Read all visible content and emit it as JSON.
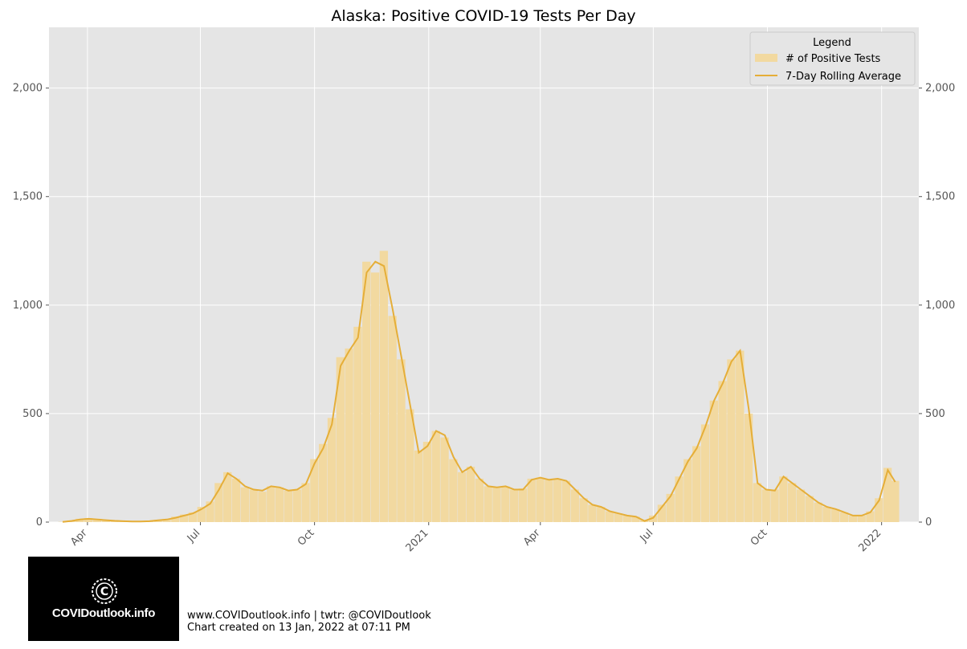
{
  "chart_data": {
    "type": "bar",
    "title": "Alaska: Positive COVID-19 Tests Per Day",
    "xlabel": "",
    "ylabel": "",
    "x_range": [
      "2020-03-01",
      "2022-01-31"
    ],
    "ylim": [
      0,
      2280
    ],
    "y_ticks": [
      0,
      500,
      1000,
      1500,
      2000
    ],
    "y_tick_labels": [
      "0",
      "500",
      "1,000",
      "1,500",
      "2,000"
    ],
    "x_ticks": [
      {
        "date": "2020-04-01",
        "label": "Apr"
      },
      {
        "date": "2020-07-01",
        "label": "Jul"
      },
      {
        "date": "2020-10-01",
        "label": "Oct"
      },
      {
        "date": "2021-01-01",
        "label": "2021"
      },
      {
        "date": "2021-04-01",
        "label": "Apr"
      },
      {
        "date": "2021-07-01",
        "label": "Jul"
      },
      {
        "date": "2021-10-01",
        "label": "Oct"
      },
      {
        "date": "2022-01-01",
        "label": "2022"
      }
    ],
    "grid": true,
    "legend": {
      "title": "Legend",
      "position": "top-right",
      "entries": [
        {
          "label": "# of Positive Tests",
          "kind": "bar"
        },
        {
          "label": "7-Day Rolling Average",
          "kind": "line"
        }
      ]
    },
    "series": [
      {
        "name": "# of Positive Tests",
        "kind": "bar",
        "color": "#f2d9a0",
        "points": [
          [
            "2020-03-12",
            1
          ],
          [
            "2020-03-19",
            8
          ],
          [
            "2020-03-26",
            15
          ],
          [
            "2020-04-02",
            18
          ],
          [
            "2020-04-09",
            15
          ],
          [
            "2020-04-16",
            10
          ],
          [
            "2020-04-23",
            6
          ],
          [
            "2020-04-30",
            4
          ],
          [
            "2020-05-07",
            4
          ],
          [
            "2020-05-14",
            3
          ],
          [
            "2020-05-21",
            5
          ],
          [
            "2020-05-28",
            10
          ],
          [
            "2020-06-04",
            15
          ],
          [
            "2020-06-11",
            25
          ],
          [
            "2020-06-18",
            35
          ],
          [
            "2020-06-25",
            45
          ],
          [
            "2020-07-02",
            70
          ],
          [
            "2020-07-09",
            95
          ],
          [
            "2020-07-16",
            180
          ],
          [
            "2020-07-23",
            230
          ],
          [
            "2020-07-30",
            200
          ],
          [
            "2020-08-06",
            160
          ],
          [
            "2020-08-13",
            150
          ],
          [
            "2020-08-20",
            140
          ],
          [
            "2020-08-27",
            165
          ],
          [
            "2020-09-03",
            160
          ],
          [
            "2020-09-10",
            145
          ],
          [
            "2020-09-17",
            150
          ],
          [
            "2020-09-24",
            180
          ],
          [
            "2020-10-01",
            290
          ],
          [
            "2020-10-08",
            360
          ],
          [
            "2020-10-15",
            480
          ],
          [
            "2020-10-22",
            760
          ],
          [
            "2020-10-29",
            800
          ],
          [
            "2020-11-05",
            900
          ],
          [
            "2020-11-12",
            1200
          ],
          [
            "2020-11-19",
            1150
          ],
          [
            "2020-11-26",
            1250
          ],
          [
            "2020-12-03",
            950
          ],
          [
            "2020-12-10",
            750
          ],
          [
            "2020-12-17",
            520
          ],
          [
            "2020-12-24",
            330
          ],
          [
            "2020-12-31",
            370
          ],
          [
            "2021-01-07",
            420
          ],
          [
            "2021-01-14",
            390
          ],
          [
            "2021-01-21",
            290
          ],
          [
            "2021-01-28",
            230
          ],
          [
            "2021-02-04",
            255
          ],
          [
            "2021-02-11",
            200
          ],
          [
            "2021-02-18",
            165
          ],
          [
            "2021-02-25",
            160
          ],
          [
            "2021-03-04",
            165
          ],
          [
            "2021-03-11",
            150
          ],
          [
            "2021-03-18",
            155
          ],
          [
            "2021-03-25",
            200
          ],
          [
            "2021-04-01",
            205
          ],
          [
            "2021-04-08",
            195
          ],
          [
            "2021-04-15",
            200
          ],
          [
            "2021-04-22",
            190
          ],
          [
            "2021-04-29",
            150
          ],
          [
            "2021-05-06",
            110
          ],
          [
            "2021-05-13",
            80
          ],
          [
            "2021-05-20",
            70
          ],
          [
            "2021-05-27",
            50
          ],
          [
            "2021-06-03",
            40
          ],
          [
            "2021-06-10",
            30
          ],
          [
            "2021-06-17",
            25
          ],
          [
            "2021-06-24",
            10
          ],
          [
            "2021-07-01",
            30
          ],
          [
            "2021-07-08",
            80
          ],
          [
            "2021-07-15",
            130
          ],
          [
            "2021-07-22",
            210
          ],
          [
            "2021-07-29",
            290
          ],
          [
            "2021-08-05",
            350
          ],
          [
            "2021-08-12",
            450
          ],
          [
            "2021-08-19",
            560
          ],
          [
            "2021-08-26",
            650
          ],
          [
            "2021-09-02",
            750
          ],
          [
            "2021-09-09",
            790
          ],
          [
            "2021-09-16",
            500
          ],
          [
            "2021-09-23",
            180
          ],
          [
            "2021-09-30",
            150
          ],
          [
            "2021-10-07",
            150
          ],
          [
            "2021-10-14",
            210
          ],
          [
            "2021-10-21",
            180
          ],
          [
            "2021-10-28",
            150
          ],
          [
            "2021-11-04",
            120
          ],
          [
            "2021-11-11",
            90
          ],
          [
            "2021-11-18",
            70
          ],
          [
            "2021-11-25",
            60
          ],
          [
            "2021-12-02",
            45
          ],
          [
            "2021-12-09",
            30
          ],
          [
            "2021-12-16",
            30
          ],
          [
            "2021-12-23",
            50
          ],
          [
            "2021-12-30",
            110
          ],
          [
            "2022-01-06",
            250
          ],
          [
            "2022-01-12",
            190
          ]
        ]
      },
      {
        "name": "7-Day Rolling Average",
        "kind": "line",
        "color": "#e5ae38",
        "points": [
          [
            "2020-03-12",
            1
          ],
          [
            "2020-03-19",
            5
          ],
          [
            "2020-03-26",
            12
          ],
          [
            "2020-04-02",
            15
          ],
          [
            "2020-04-09",
            12
          ],
          [
            "2020-04-16",
            9
          ],
          [
            "2020-04-23",
            6
          ],
          [
            "2020-04-30",
            4
          ],
          [
            "2020-05-07",
            3
          ],
          [
            "2020-05-14",
            3
          ],
          [
            "2020-05-21",
            4
          ],
          [
            "2020-05-28",
            8
          ],
          [
            "2020-06-04",
            12
          ],
          [
            "2020-06-11",
            20
          ],
          [
            "2020-06-18",
            30
          ],
          [
            "2020-06-25",
            40
          ],
          [
            "2020-07-02",
            60
          ],
          [
            "2020-07-09",
            85
          ],
          [
            "2020-07-16",
            150
          ],
          [
            "2020-07-23",
            225
          ],
          [
            "2020-07-30",
            200
          ],
          [
            "2020-08-06",
            165
          ],
          [
            "2020-08-13",
            150
          ],
          [
            "2020-08-20",
            145
          ],
          [
            "2020-08-27",
            165
          ],
          [
            "2020-09-03",
            160
          ],
          [
            "2020-09-10",
            145
          ],
          [
            "2020-09-17",
            150
          ],
          [
            "2020-09-24",
            175
          ],
          [
            "2020-10-01",
            270
          ],
          [
            "2020-10-08",
            340
          ],
          [
            "2020-10-15",
            450
          ],
          [
            "2020-10-22",
            720
          ],
          [
            "2020-10-29",
            790
          ],
          [
            "2020-11-05",
            850
          ],
          [
            "2020-11-12",
            1150
          ],
          [
            "2020-11-19",
            1200
          ],
          [
            "2020-11-26",
            1180
          ],
          [
            "2020-12-03",
            980
          ],
          [
            "2020-12-10",
            760
          ],
          [
            "2020-12-17",
            540
          ],
          [
            "2020-12-24",
            320
          ],
          [
            "2020-12-31",
            350
          ],
          [
            "2021-01-07",
            420
          ],
          [
            "2021-01-14",
            400
          ],
          [
            "2021-01-21",
            300
          ],
          [
            "2021-01-28",
            230
          ],
          [
            "2021-02-04",
            255
          ],
          [
            "2021-02-11",
            200
          ],
          [
            "2021-02-18",
            165
          ],
          [
            "2021-02-25",
            160
          ],
          [
            "2021-03-04",
            165
          ],
          [
            "2021-03-11",
            150
          ],
          [
            "2021-03-18",
            150
          ],
          [
            "2021-03-25",
            195
          ],
          [
            "2021-04-01",
            205
          ],
          [
            "2021-04-08",
            195
          ],
          [
            "2021-04-15",
            200
          ],
          [
            "2021-04-22",
            190
          ],
          [
            "2021-04-29",
            150
          ],
          [
            "2021-05-06",
            110
          ],
          [
            "2021-05-13",
            80
          ],
          [
            "2021-05-20",
            70
          ],
          [
            "2021-05-27",
            50
          ],
          [
            "2021-06-03",
            40
          ],
          [
            "2021-06-10",
            30
          ],
          [
            "2021-06-17",
            25
          ],
          [
            "2021-06-24",
            5
          ],
          [
            "2021-07-01",
            20
          ],
          [
            "2021-07-08",
            70
          ],
          [
            "2021-07-15",
            120
          ],
          [
            "2021-07-22",
            200
          ],
          [
            "2021-07-29",
            280
          ],
          [
            "2021-08-05",
            340
          ],
          [
            "2021-08-12",
            440
          ],
          [
            "2021-08-19",
            560
          ],
          [
            "2021-08-26",
            640
          ],
          [
            "2021-09-02",
            740
          ],
          [
            "2021-09-09",
            790
          ],
          [
            "2021-09-16",
            520
          ],
          [
            "2021-09-23",
            180
          ],
          [
            "2021-09-30",
            150
          ],
          [
            "2021-10-07",
            145
          ],
          [
            "2021-10-14",
            210
          ],
          [
            "2021-10-21",
            180
          ],
          [
            "2021-10-28",
            150
          ],
          [
            "2021-11-04",
            120
          ],
          [
            "2021-11-11",
            90
          ],
          [
            "2021-11-18",
            70
          ],
          [
            "2021-11-25",
            60
          ],
          [
            "2021-12-02",
            45
          ],
          [
            "2021-12-09",
            30
          ],
          [
            "2021-12-16",
            30
          ],
          [
            "2021-12-23",
            45
          ],
          [
            "2021-12-30",
            100
          ],
          [
            "2022-01-06",
            240
          ],
          [
            "2022-01-12",
            185
          ]
        ]
      }
    ]
  },
  "branding": {
    "logo_text": "COVIDoutlook.info",
    "footer_line1": "www.COVIDoutlook.info | twtr: @COVIDoutlook",
    "footer_line2": "Chart created on 13 Jan, 2022 at 07:11 PM"
  },
  "colors": {
    "plot_bg": "#e5e5e5",
    "grid": "#ffffff",
    "bar": "#f2d9a0",
    "line": "#e5ae38"
  }
}
